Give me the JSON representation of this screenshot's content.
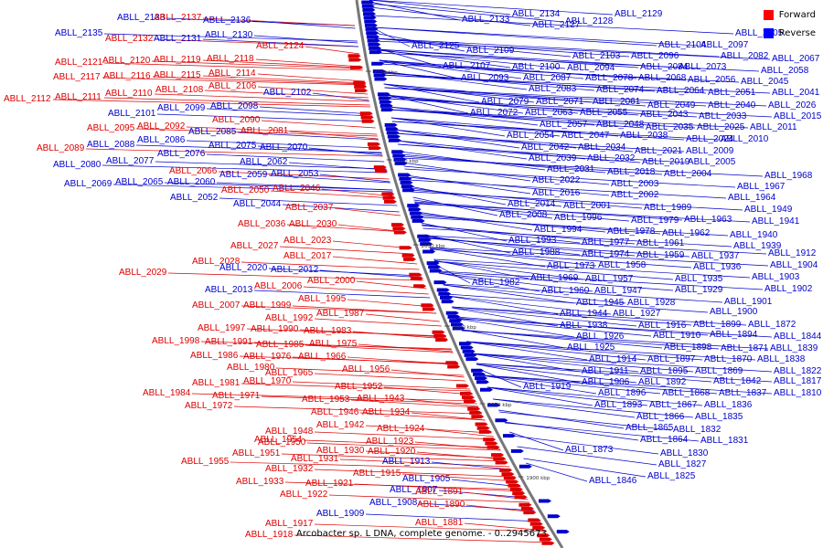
{
  "caption": "Arcobacter sp. L DNA, complete genome. - 0..2945673",
  "legend": [
    {
      "label": "Forward",
      "color": "#ff0000"
    },
    {
      "label": "Reverse",
      "color": "#0000ff"
    }
  ],
  "colors": {
    "forward": "#dd0000",
    "reverse": "#0000cc",
    "backbone": "#808080"
  },
  "tick_labels": [
    "2150 kbp",
    "2100 kbp",
    "2050 kbp",
    "2000 kbp",
    "1950 kbp",
    "1900 kbp"
  ],
  "left_labels": [
    {
      "t": "ABLL_2138",
      "s": "r"
    },
    {
      "t": "ABLL_2137",
      "s": "f"
    },
    {
      "t": "ABLL_2136",
      "s": "r"
    },
    {
      "t": "ABLL_2135",
      "s": "r"
    },
    {
      "t": "ABLL_2132",
      "s": "f"
    },
    {
      "t": "ABLL_2131",
      "s": "r"
    },
    {
      "t": "ABLL_2130",
      "s": "r"
    },
    {
      "t": "ABLL_2124",
      "s": "f"
    },
    {
      "t": "ABLL_2121",
      "s": "f"
    },
    {
      "t": "ABLL_2120",
      "s": "f"
    },
    {
      "t": "ABLL_2119",
      "s": "f"
    },
    {
      "t": "ABLL_2118",
      "s": "f"
    },
    {
      "t": "ABLL_2117",
      "s": "f"
    },
    {
      "t": "ABLL_2116",
      "s": "f"
    },
    {
      "t": "ABLL_2115",
      "s": "f"
    },
    {
      "t": "ABLL_2114",
      "s": "f"
    },
    {
      "t": "ABLL_2110",
      "s": "f"
    },
    {
      "t": "ABLL_2108",
      "s": "f"
    },
    {
      "t": "ABLL_2106",
      "s": "f"
    },
    {
      "t": "ABLL_2102",
      "s": "r"
    },
    {
      "t": "ABLL_2112",
      "s": "f"
    },
    {
      "t": "ABLL_2111",
      "s": "f"
    },
    {
      "t": "ABLL_2099",
      "s": "r"
    },
    {
      "t": "ABLL_2098",
      "s": "r"
    },
    {
      "t": "ABLL_2101",
      "s": "r"
    },
    {
      "t": "ABLL_2090",
      "s": "f"
    },
    {
      "t": "ABLL_2095",
      "s": "f"
    },
    {
      "t": "ABLL_2092",
      "s": "f"
    },
    {
      "t": "ABLL_2085",
      "s": "r"
    },
    {
      "t": "ABLL_2081",
      "s": "f"
    },
    {
      "t": "ABLL_2088",
      "s": "r"
    },
    {
      "t": "ABLL_2086",
      "s": "r"
    },
    {
      "t": "ABLL_2089",
      "s": "f"
    },
    {
      "t": "ABLL_2075",
      "s": "r"
    },
    {
      "t": "ABLL_2070",
      "s": "r"
    },
    {
      "t": "ABLL_2076",
      "s": "r"
    },
    {
      "t": "ABLL_2077",
      "s": "r"
    },
    {
      "t": "ABLL_2062",
      "s": "r"
    },
    {
      "t": "ABLL_2080",
      "s": "r"
    },
    {
      "t": "ABLL_2066",
      "s": "f"
    },
    {
      "t": "ABLL_2059",
      "s": "r"
    },
    {
      "t": "ABLL_2053",
      "s": "r"
    },
    {
      "t": "ABLL_2069",
      "s": "r"
    },
    {
      "t": "ABLL_2065",
      "s": "r"
    },
    {
      "t": "ABLL_2060",
      "s": "r"
    },
    {
      "t": "ABLL_2050",
      "s": "f"
    },
    {
      "t": "ABLL_2046",
      "s": "f"
    },
    {
      "t": "ABLL_2052",
      "s": "r"
    },
    {
      "t": "ABLL_2044",
      "s": "r"
    },
    {
      "t": "ABLL_2037",
      "s": "f"
    },
    {
      "t": "ABLL_2036",
      "s": "f"
    },
    {
      "t": "ABLL_2030",
      "s": "f"
    },
    {
      "t": "ABLL_2023",
      "s": "f"
    },
    {
      "t": "ABLL_2027",
      "s": "f"
    },
    {
      "t": "ABLL_2017",
      "s": "f"
    },
    {
      "t": "ABLL_2028",
      "s": "f"
    },
    {
      "t": "ABLL_2020",
      "s": "r"
    },
    {
      "t": "ABLL_2012",
      "s": "r"
    },
    {
      "t": "ABLL_2029",
      "s": "f"
    },
    {
      "t": "ABLL_2000",
      "s": "f"
    },
    {
      "t": "ABLL_2006",
      "s": "f"
    },
    {
      "t": "ABLL_2013",
      "s": "r"
    },
    {
      "t": "ABLL_1995",
      "s": "f"
    },
    {
      "t": "ABLL_2007",
      "s": "f"
    },
    {
      "t": "ABLL_1999",
      "s": "f"
    },
    {
      "t": "ABLL_1987",
      "s": "f"
    },
    {
      "t": "ABLL_1992",
      "s": "f"
    },
    {
      "t": "ABLL_1997",
      "s": "f"
    },
    {
      "t": "ABLL_1990",
      "s": "f"
    },
    {
      "t": "ABLL_1983",
      "s": "f"
    },
    {
      "t": "ABLL_1998",
      "s": "f"
    },
    {
      "t": "ABLL_1991",
      "s": "f"
    },
    {
      "t": "ABLL_1985",
      "s": "f"
    },
    {
      "t": "ABLL_1975",
      "s": "f"
    },
    {
      "t": "ABLL_1986",
      "s": "f"
    },
    {
      "t": "ABLL_1976",
      "s": "f"
    },
    {
      "t": "ABLL_1966",
      "s": "f"
    },
    {
      "t": "ABLL_1980",
      "s": "f"
    },
    {
      "t": "ABLL_1956",
      "s": "f"
    },
    {
      "t": "ABLL_1965",
      "s": "f"
    },
    {
      "t": "ABLL_1981",
      "s": "f"
    },
    {
      "t": "ABLL_1970",
      "s": "f"
    },
    {
      "t": "ABLL_1952",
      "s": "f"
    },
    {
      "t": "ABLL_1984",
      "s": "f"
    },
    {
      "t": "ABLL_1971",
      "s": "f"
    },
    {
      "t": "ABLL_1953",
      "s": "f"
    },
    {
      "t": "ABLL_1943",
      "s": "f"
    },
    {
      "t": "ABLL_1972",
      "s": "f"
    },
    {
      "t": "ABLL_1946",
      "s": "f"
    },
    {
      "t": "ABLL_1934",
      "s": "f"
    },
    {
      "t": "ABLL_1954",
      "s": "f"
    },
    {
      "t": "ABLL_1942",
      "s": "f"
    },
    {
      "t": "ABLL_1948",
      "s": "f"
    },
    {
      "t": "ABLL_1924",
      "s": "f"
    },
    {
      "t": "ABLL_1923",
      "s": "f"
    },
    {
      "t": "ABLL_1950",
      "s": "f"
    },
    {
      "t": "ABLL_1930",
      "s": "f"
    },
    {
      "t": "ABLL_1920",
      "s": "f"
    },
    {
      "t": "ABLL_1951",
      "s": "f"
    },
    {
      "t": "ABLL_1931",
      "s": "f"
    },
    {
      "t": "ABLL_1913",
      "s": "r"
    },
    {
      "t": "ABLL_1955",
      "s": "f"
    },
    {
      "t": "ABLL_1932",
      "s": "f"
    },
    {
      "t": "ABLL_1915",
      "s": "f"
    },
    {
      "t": "ABLL_1905",
      "s": "r"
    },
    {
      "t": "ABLL_1933",
      "s": "f"
    },
    {
      "t": "ABLL_1921",
      "s": "f"
    },
    {
      "t": "ABLL_1907",
      "s": "r"
    },
    {
      "t": "ABLL_1891",
      "s": "f"
    },
    {
      "t": "ABLL_1922",
      "s": "f"
    },
    {
      "t": "ABLL_1908",
      "s": "r"
    },
    {
      "t": "ABLL_1890",
      "s": "f"
    },
    {
      "t": "ABLL_1909",
      "s": "r"
    },
    {
      "t": "ABLL_1881",
      "s": "f"
    },
    {
      "t": "ABLL_1917",
      "s": "f"
    },
    {
      "t": "ABLL_1918",
      "s": "f"
    }
  ],
  "right_labels": [
    {
      "t": "ABLL_2134",
      "s": "r"
    },
    {
      "t": "ABLL_2129",
      "s": "r"
    },
    {
      "t": "ABLL_2133",
      "s": "r"
    },
    {
      "t": "ABLL_2128",
      "s": "r"
    },
    {
      "t": "ABLL_2127",
      "s": "r"
    },
    {
      "t": "ABLL_2105",
      "s": "r"
    },
    {
      "t": "ABLL_2104",
      "s": "r"
    },
    {
      "t": "ABLL_2097",
      "s": "r"
    },
    {
      "t": "ABLL_2125",
      "s": "r"
    },
    {
      "t": "ABLL_2109",
      "s": "r"
    },
    {
      "t": "ABLL_2067",
      "s": "r"
    },
    {
      "t": "ABLL_2103",
      "s": "r"
    },
    {
      "t": "ABLL_2096",
      "s": "r"
    },
    {
      "t": "ABLL_2082",
      "s": "r"
    },
    {
      "t": "ABLL_2107",
      "s": "r"
    },
    {
      "t": "ABLL_2100",
      "s": "r"
    },
    {
      "t": "ABLL_2094",
      "s": "r"
    },
    {
      "t": "ABLL_2084",
      "s": "r"
    },
    {
      "t": "ABLL_2073",
      "s": "r"
    },
    {
      "t": "ABLL_2058",
      "s": "r"
    },
    {
      "t": "ABLL_2093",
      "s": "r"
    },
    {
      "t": "ABLL_2087",
      "s": "r"
    },
    {
      "t": "ABLL_2078",
      "s": "r"
    },
    {
      "t": "ABLL_2068",
      "s": "r"
    },
    {
      "t": "ABLL_2056",
      "s": "r"
    },
    {
      "t": "ABLL_2045",
      "s": "r"
    },
    {
      "t": "ABLL_2083",
      "s": "r"
    },
    {
      "t": "ABLL_2074",
      "s": "r"
    },
    {
      "t": "ABLL_2064",
      "s": "r"
    },
    {
      "t": "ABLL_2051",
      "s": "r"
    },
    {
      "t": "ABLL_2041",
      "s": "r"
    },
    {
      "t": "ABLL_2079",
      "s": "r"
    },
    {
      "t": "ABLL_2071",
      "s": "r"
    },
    {
      "t": "ABLL_2061",
      "s": "r"
    },
    {
      "t": "ABLL_2049",
      "s": "r"
    },
    {
      "t": "ABLL_2040",
      "s": "r"
    },
    {
      "t": "ABLL_2026",
      "s": "r"
    },
    {
      "t": "ABLL_2072",
      "s": "r"
    },
    {
      "t": "ABLL_2063",
      "s": "r"
    },
    {
      "t": "ABLL_2055",
      "s": "r"
    },
    {
      "t": "ABLL_2043",
      "s": "r"
    },
    {
      "t": "ABLL_2033",
      "s": "r"
    },
    {
      "t": "ABLL_2015",
      "s": "r"
    },
    {
      "t": "ABLL_2057",
      "s": "r"
    },
    {
      "t": "ABLL_2048",
      "s": "r"
    },
    {
      "t": "ABLL_2035",
      "s": "r"
    },
    {
      "t": "ABLL_2025",
      "s": "r"
    },
    {
      "t": "ABLL_2011",
      "s": "r"
    },
    {
      "t": "ABLL_2054",
      "s": "r"
    },
    {
      "t": "ABLL_2047",
      "s": "r"
    },
    {
      "t": "ABLL_2038",
      "s": "r"
    },
    {
      "t": "ABLL_2024",
      "s": "r"
    },
    {
      "t": "ABLL_2010",
      "s": "r"
    },
    {
      "t": "ABLL_2042",
      "s": "r"
    },
    {
      "t": "ABLL_2034",
      "s": "r"
    },
    {
      "t": "ABLL_2021",
      "s": "r"
    },
    {
      "t": "ABLL_2009",
      "s": "r"
    },
    {
      "t": "ABLL_2039",
      "s": "r"
    },
    {
      "t": "ABLL_2032",
      "s": "r"
    },
    {
      "t": "ABLL_2019",
      "s": "r"
    },
    {
      "t": "ABLL_2005",
      "s": "r"
    },
    {
      "t": "ABLL_2031",
      "s": "r"
    },
    {
      "t": "ABLL_2018",
      "s": "r"
    },
    {
      "t": "ABLL_2004",
      "s": "r"
    },
    {
      "t": "ABLL_2022",
      "s": "r"
    },
    {
      "t": "ABLL_1968",
      "s": "r"
    },
    {
      "t": "ABLL_2003",
      "s": "r"
    },
    {
      "t": "ABLL_1967",
      "s": "r"
    },
    {
      "t": "ABLL_2016",
      "s": "r"
    },
    {
      "t": "ABLL_2002",
      "s": "r"
    },
    {
      "t": "ABLL_1964",
      "s": "r"
    },
    {
      "t": "ABLL_2014",
      "s": "r"
    },
    {
      "t": "ABLL_2001",
      "s": "r"
    },
    {
      "t": "ABLL_1989",
      "s": "r"
    },
    {
      "t": "ABLL_1949",
      "s": "r"
    },
    {
      "t": "ABLL_2008",
      "s": "r"
    },
    {
      "t": "ABLL_1996",
      "s": "r"
    },
    {
      "t": "ABLL_1979",
      "s": "r"
    },
    {
      "t": "ABLL_1963",
      "s": "r"
    },
    {
      "t": "ABLL_1941",
      "s": "r"
    },
    {
      "t": "ABLL_1994",
      "s": "r"
    },
    {
      "t": "ABLL_1978",
      "s": "r"
    },
    {
      "t": "ABLL_1962",
      "s": "r"
    },
    {
      "t": "ABLL_1940",
      "s": "r"
    },
    {
      "t": "ABLL_1993",
      "s": "r"
    },
    {
      "t": "ABLL_1977",
      "s": "r"
    },
    {
      "t": "ABLL_1961",
      "s": "r"
    },
    {
      "t": "ABLL_1939",
      "s": "r"
    },
    {
      "t": "ABLL_1988",
      "s": "r"
    },
    {
      "t": "ABLL_1974",
      "s": "r"
    },
    {
      "t": "ABLL_1959",
      "s": "r"
    },
    {
      "t": "ABLL_1937",
      "s": "r"
    },
    {
      "t": "ABLL_1912",
      "s": "r"
    },
    {
      "t": "ABLL_1973",
      "s": "r"
    },
    {
      "t": "ABLL_1958",
      "s": "r"
    },
    {
      "t": "ABLL_1936",
      "s": "r"
    },
    {
      "t": "ABLL_1904",
      "s": "r"
    },
    {
      "t": "ABLL_1969",
      "s": "r"
    },
    {
      "t": "ABLL_1957",
      "s": "r"
    },
    {
      "t": "ABLL_1935",
      "s": "r"
    },
    {
      "t": "ABLL_1903",
      "s": "r"
    },
    {
      "t": "ABLL_1982",
      "s": "r"
    },
    {
      "t": "ABLL_1960",
      "s": "r"
    },
    {
      "t": "ABLL_1947",
      "s": "r"
    },
    {
      "t": "ABLL_1929",
      "s": "r"
    },
    {
      "t": "ABLL_1902",
      "s": "r"
    },
    {
      "t": "ABLL_1945",
      "s": "r"
    },
    {
      "t": "ABLL_1928",
      "s": "r"
    },
    {
      "t": "ABLL_1901",
      "s": "r"
    },
    {
      "t": "ABLL_1944",
      "s": "r"
    },
    {
      "t": "ABLL_1927",
      "s": "r"
    },
    {
      "t": "ABLL_1900",
      "s": "r"
    },
    {
      "t": "ABLL_1938",
      "s": "r"
    },
    {
      "t": "ABLL_1916",
      "s": "r"
    },
    {
      "t": "ABLL_1899",
      "s": "r"
    },
    {
      "t": "ABLL_1872",
      "s": "r"
    },
    {
      "t": "ABLL_1926",
      "s": "r"
    },
    {
      "t": "ABLL_1910",
      "s": "r"
    },
    {
      "t": "ABLL_1894",
      "s": "r"
    },
    {
      "t": "ABLL_1844",
      "s": "r"
    },
    {
      "t": "ABLL_1925",
      "s": "r"
    },
    {
      "t": "ABLL_1898",
      "s": "r"
    },
    {
      "t": "ABLL_1871",
      "s": "r"
    },
    {
      "t": "ABLL_1839",
      "s": "r"
    },
    {
      "t": "ABLL_1914",
      "s": "r"
    },
    {
      "t": "ABLL_1897",
      "s": "r"
    },
    {
      "t": "ABLL_1870",
      "s": "r"
    },
    {
      "t": "ABLL_1838",
      "s": "r"
    },
    {
      "t": "ABLL_1911",
      "s": "r"
    },
    {
      "t": "ABLL_1895",
      "s": "r"
    },
    {
      "t": "ABLL_1869",
      "s": "r"
    },
    {
      "t": "ABLL_1822",
      "s": "r"
    },
    {
      "t": "ABLL_1906",
      "s": "r"
    },
    {
      "t": "ABLL_1892",
      "s": "r"
    },
    {
      "t": "ABLL_1842",
      "s": "r"
    },
    {
      "t": "ABLL_1817",
      "s": "r"
    },
    {
      "t": "ABLL_1919",
      "s": "r"
    },
    {
      "t": "ABLL_1896",
      "s": "r"
    },
    {
      "t": "ABLL_1868",
      "s": "r"
    },
    {
      "t": "ABLL_1837",
      "s": "r"
    },
    {
      "t": "ABLL_1810",
      "s": "r"
    },
    {
      "t": "ABLL_1893",
      "s": "r"
    },
    {
      "t": "ABLL_1867",
      "s": "r"
    },
    {
      "t": "ABLL_1836",
      "s": "r"
    },
    {
      "t": "ABLL_1866",
      "s": "r"
    },
    {
      "t": "ABLL_1835",
      "s": "r"
    },
    {
      "t": "ABLL_1865",
      "s": "r"
    },
    {
      "t": "ABLL_1832",
      "s": "r"
    },
    {
      "t": "ABLL_1864",
      "s": "r"
    },
    {
      "t": "ABLL_1831",
      "s": "r"
    },
    {
      "t": "ABLL_1873",
      "s": "r"
    },
    {
      "t": "ABLL_1830",
      "s": "r"
    },
    {
      "t": "ABLL_1827",
      "s": "r"
    },
    {
      "t": "ABLL_1846",
      "s": "r"
    },
    {
      "t": "ABLL_1825",
      "s": "r"
    }
  ]
}
